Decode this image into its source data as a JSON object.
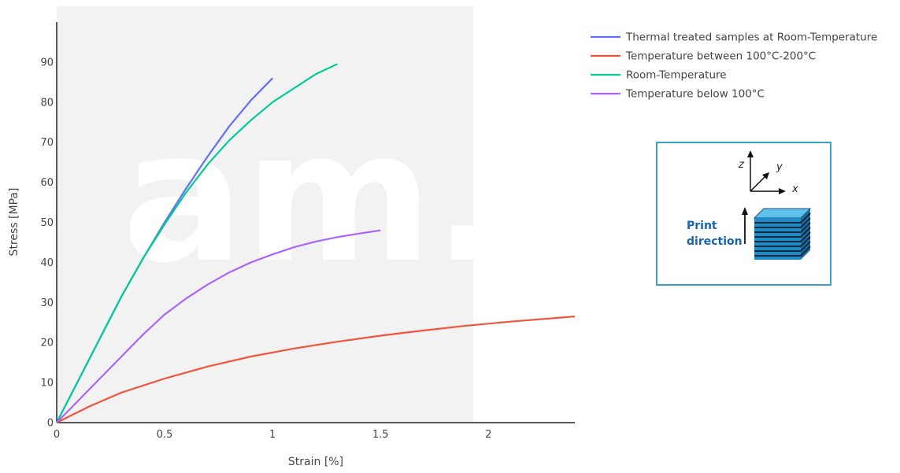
{
  "chart_data": {
    "type": "line",
    "title": "",
    "xlabel": "Strain [%]",
    "ylabel": "Stress [MPa]",
    "xlim": [
      0,
      2.4
    ],
    "ylim": [
      0,
      100
    ],
    "x_ticks": [
      0,
      0.5,
      1,
      1.5,
      2
    ],
    "x_tick_labels": [
      "0",
      "0.5",
      "1",
      "1.5",
      "2"
    ],
    "y_ticks": [
      0,
      10,
      20,
      30,
      40,
      50,
      60,
      70,
      80,
      90
    ],
    "y_tick_labels": [
      "0",
      "10",
      "20",
      "30",
      "40",
      "50",
      "60",
      "70",
      "80",
      "90"
    ],
    "grid": false,
    "legend_position": "top-right",
    "series": [
      {
        "name": "Thermal treated samples at Room-Temperature",
        "color": "#636efa",
        "x": [
          0,
          0.1,
          0.2,
          0.3,
          0.4,
          0.5,
          0.6,
          0.7,
          0.8,
          0.9,
          1.0
        ],
        "y": [
          0,
          10.5,
          21,
          31.5,
          41,
          50,
          58.5,
          66.5,
          74,
          80.5,
          86
        ]
      },
      {
        "name": "Temperature between 100°C-200°C",
        "color": "#ef553b",
        "x": [
          0,
          0.15,
          0.3,
          0.5,
          0.7,
          0.9,
          1.1,
          1.3,
          1.5,
          1.7,
          1.9,
          2.1,
          2.4
        ],
        "y": [
          0,
          4,
          7.5,
          11,
          14,
          16.5,
          18.5,
          20.2,
          21.7,
          23,
          24.2,
          25.2,
          26.5
        ]
      },
      {
        "name": "Room-Temperature",
        "color": "#00cc96",
        "x": [
          0,
          0.1,
          0.2,
          0.3,
          0.4,
          0.5,
          0.6,
          0.7,
          0.8,
          0.9,
          1.0,
          1.1,
          1.2,
          1.3
        ],
        "y": [
          0,
          10.5,
          21,
          31.5,
          41,
          49.5,
          57.5,
          64.5,
          70.5,
          75.5,
          80,
          83.5,
          87,
          89.5
        ]
      },
      {
        "name": "Temperature below 100°C",
        "color": "#ab63fa",
        "x": [
          0,
          0.1,
          0.2,
          0.3,
          0.4,
          0.5,
          0.6,
          0.7,
          0.8,
          0.9,
          1.0,
          1.1,
          1.2,
          1.3,
          1.4,
          1.5
        ],
        "y": [
          0,
          5.5,
          11,
          16.5,
          22,
          27,
          31,
          34.5,
          37.5,
          40,
          42,
          43.8,
          45.2,
          46.3,
          47.2,
          48
        ]
      }
    ]
  },
  "watermark_text": "am.",
  "inset": {
    "print_label_line1": "Print",
    "print_label_line2": "direction",
    "axis_x": "x",
    "axis_y": "y",
    "axis_z": "z"
  }
}
